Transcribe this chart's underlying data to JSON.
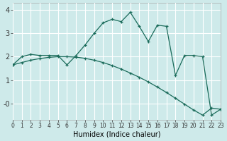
{
  "xlabel": "Humidex (Indice chaleur)",
  "background_color": "#ceeaea",
  "line_color": "#1a6b5a",
  "grid_color": "#ffffff",
  "xlim": [
    0,
    23
  ],
  "ylim": [
    -0.7,
    4.3
  ],
  "series1_x": [
    0,
    1,
    2,
    3,
    4,
    5,
    6,
    7,
    8,
    9,
    10,
    11,
    12,
    13,
    14,
    15,
    16,
    17,
    18,
    19,
    20,
    21,
    22,
    23
  ],
  "series1_y": [
    1.65,
    2.0,
    2.1,
    2.05,
    2.05,
    2.05,
    1.65,
    2.05,
    2.5,
    3.0,
    3.45,
    3.6,
    3.5,
    3.9,
    3.3,
    2.65,
    3.35,
    3.3,
    1.2,
    2.05,
    2.05,
    2.0,
    -0.5,
    -0.25
  ],
  "series2_x": [
    0,
    1,
    2,
    3,
    4,
    5,
    6,
    7,
    8,
    9,
    10,
    11,
    12,
    13,
    14,
    15,
    16,
    17,
    18,
    19,
    20,
    21,
    22,
    23
  ],
  "series2_y": [
    1.65,
    1.75,
    1.85,
    1.92,
    1.97,
    2.0,
    2.0,
    1.98,
    1.93,
    1.85,
    1.75,
    1.62,
    1.47,
    1.3,
    1.12,
    0.92,
    0.7,
    0.47,
    0.22,
    -0.03,
    -0.28,
    -0.5,
    -0.2,
    -0.25
  ],
  "xtick_fontsize": 5.5,
  "ytick_fontsize": 7,
  "xlabel_fontsize": 7
}
